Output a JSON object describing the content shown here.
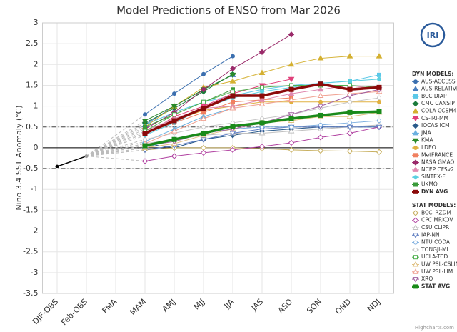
{
  "chart_data": {
    "type": "line",
    "title": "Model Predictions of ENSO from Mar 2026",
    "y_label": "Nino 3.4 SST Anomaly (°C)",
    "credit": "Highcharts.com",
    "logo": "IRI",
    "categories": [
      "DJF-OBS",
      "Feb-OBS",
      "FMA",
      "MAM",
      "AMJ",
      "MJJ",
      "JJA",
      "JAS",
      "ASO",
      "SON",
      "OND",
      "NDJ"
    ],
    "ylim": [
      -3.5,
      3
    ],
    "yticks": [
      -3.5,
      -3,
      -2.5,
      -2,
      -1.5,
      -1,
      -0.5,
      0,
      0.5,
      1,
      1.5,
      2,
      2.5,
      3
    ],
    "thresholds": [
      0.5,
      -0.5
    ],
    "grid": true,
    "observed": {
      "color": "#000000",
      "values": [
        -0.45,
        -0.2,
        null,
        null,
        null,
        null,
        null,
        null,
        null,
        null,
        null,
        null
      ]
    },
    "legend_groups": [
      "DYN MODELS:",
      "STAT MODELS:"
    ],
    "series": [
      {
        "name": "AUS-ACCESS",
        "group": 0,
        "color": "#3b6faf",
        "marker": "circle",
        "filled": true,
        "values": [
          null,
          null,
          null,
          0.8,
          1.3,
          1.77,
          2.2,
          null,
          null,
          null,
          null,
          null
        ]
      },
      {
        "name": "AUS-RELATIVE",
        "group": 0,
        "color": "#4a7fc0",
        "marker": "triangle",
        "filled": true,
        "values": [
          null,
          null,
          null,
          0.55,
          1.0,
          1.4,
          1.75,
          null,
          null,
          null,
          null,
          null
        ]
      },
      {
        "name": "BCC DIAP",
        "group": 0,
        "color": "#5bc8e8",
        "marker": "square",
        "filled": true,
        "values": [
          null,
          null,
          null,
          0.55,
          0.85,
          1.1,
          1.25,
          1.4,
          1.5,
          1.55,
          1.6,
          1.75
        ]
      },
      {
        "name": "CMC CANSIP",
        "group": 0,
        "color": "#1a7a3a",
        "marker": "diamond",
        "filled": true,
        "values": [
          null,
          null,
          null,
          0.6,
          0.95,
          1.35,
          1.77,
          null,
          null,
          null,
          null,
          null
        ]
      },
      {
        "name": "COLA CCSM4",
        "group": 0,
        "color": "#d4b030",
        "marker": "triangle",
        "filled": true,
        "values": [
          null,
          null,
          null,
          0.5,
          1.0,
          1.45,
          1.6,
          1.8,
          2.0,
          2.15,
          2.2,
          2.2
        ]
      },
      {
        "name": "CS-IRI-MM",
        "group": 0,
        "color": "#e0407a",
        "marker": "triangle-down",
        "filled": true,
        "values": [
          null,
          null,
          null,
          0.3,
          0.75,
          1.0,
          1.3,
          1.5,
          1.65,
          null,
          null,
          null
        ]
      },
      {
        "name": "IOCAS ICM",
        "group": 0,
        "color": "#2a5a8a",
        "marker": "diamond",
        "filled": true,
        "values": [
          null,
          null,
          null,
          0.1,
          0.0,
          0.2,
          0.3,
          0.4,
          0.45,
          0.5,
          0.5,
          0.5
        ]
      },
      {
        "name": "JMA",
        "group": 0,
        "color": "#6ab0e0",
        "marker": "triangle",
        "filled": true,
        "values": [
          null,
          null,
          null,
          0.15,
          0.45,
          0.75,
          0.95,
          null,
          null,
          null,
          null,
          null
        ]
      },
      {
        "name": "KMA",
        "group": 0,
        "color": "#2a8a2a",
        "marker": "triangle-down",
        "filled": true,
        "values": [
          null,
          null,
          null,
          0.65,
          1.0,
          1.4,
          1.75,
          null,
          null,
          null,
          null,
          null
        ]
      },
      {
        "name": "LDEO",
        "group": 0,
        "color": "#e0b040",
        "marker": "circle",
        "filled": true,
        "values": [
          null,
          null,
          null,
          0.35,
          0.65,
          0.9,
          1.0,
          1.1,
          1.1,
          1.1,
          1.1,
          1.1
        ]
      },
      {
        "name": "MetFRANCE",
        "group": 0,
        "color": "#f08060",
        "marker": "square",
        "filled": true,
        "values": [
          null,
          null,
          null,
          0.35,
          0.6,
          0.85,
          1.1,
          1.15,
          1.2,
          null,
          null,
          null
        ]
      },
      {
        "name": "NASA GMAO",
        "group": 0,
        "color": "#9a2a6a",
        "marker": "diamond",
        "filled": true,
        "values": [
          null,
          null,
          null,
          0.45,
          0.85,
          1.4,
          1.9,
          2.3,
          2.72,
          null,
          null,
          null
        ]
      },
      {
        "name": "NCEP CFSv2",
        "group": 0,
        "color": "#e08ab0",
        "marker": "triangle",
        "filled": true,
        "values": [
          null,
          null,
          null,
          0.4,
          0.7,
          0.95,
          1.0,
          1.15,
          1.3,
          1.4,
          1.5,
          1.4
        ]
      },
      {
        "name": "SINTEX-F",
        "group": 0,
        "color": "#5ad0e0",
        "marker": "circle",
        "filled": true,
        "values": [
          null,
          null,
          null,
          0.3,
          0.6,
          0.95,
          1.2,
          1.35,
          1.45,
          1.55,
          1.6,
          1.65
        ]
      },
      {
        "name": "UKMO",
        "group": 0,
        "color": "#3a9a3a",
        "marker": "square",
        "filled": true,
        "values": [
          null,
          null,
          null,
          0.5,
          0.8,
          1.1,
          1.4,
          null,
          null,
          null,
          null,
          null
        ]
      },
      {
        "name": "DYN AVG",
        "group": 0,
        "color": "#8b0a0a",
        "marker": "square",
        "filled": true,
        "width": 3.5,
        "values": [
          null,
          null,
          null,
          0.35,
          0.65,
          0.95,
          1.25,
          1.25,
          1.4,
          1.53,
          1.4,
          1.45
        ]
      },
      {
        "name": "BCC_RZDM",
        "group": 1,
        "color": "#c8b060",
        "marker": "diamond",
        "filled": false,
        "values": [
          null,
          null,
          null,
          -0.05,
          0.0,
          0.0,
          0.0,
          -0.02,
          -0.05,
          -0.07,
          -0.08,
          -0.1
        ]
      },
      {
        "name": "CPC MRKOV",
        "group": 1,
        "color": "#b040a0",
        "marker": "diamond",
        "filled": false,
        "values": [
          null,
          null,
          null,
          -0.32,
          -0.2,
          -0.12,
          -0.05,
          0.03,
          0.12,
          0.25,
          0.35,
          0.5
        ]
      },
      {
        "name": "CSU CLIPR",
        "group": 1,
        "color": "#c0c0c0",
        "marker": "triangle",
        "filled": false,
        "values": [
          null,
          null,
          null,
          0.1,
          0.2,
          0.3,
          0.35,
          0.35,
          0.4,
          0.45,
          0.5,
          0.55
        ]
      },
      {
        "name": "IAP-NN",
        "group": 1,
        "color": "#5a7ac0",
        "marker": "triangle-down",
        "filled": false,
        "values": [
          null,
          null,
          null,
          -0.05,
          0.05,
          0.2,
          0.35,
          0.45,
          0.5,
          0.5,
          0.5,
          0.5
        ]
      },
      {
        "name": "NTU CODA",
        "group": 1,
        "color": "#80b0e0",
        "marker": "circle",
        "filled": false,
        "values": [
          null,
          null,
          null,
          0.0,
          0.2,
          0.35,
          0.45,
          0.5,
          0.5,
          0.55,
          0.6,
          0.65
        ]
      },
      {
        "name": "TONGJI-ML",
        "group": 1,
        "color": "#c8c8c8",
        "marker": "circle",
        "filled": false,
        "values": [
          null,
          null,
          null,
          0.2,
          0.35,
          0.5,
          0.6,
          0.7,
          0.8,
          0.95,
          1.1,
          1.2
        ]
      },
      {
        "name": "UCLA-TCD",
        "group": 1,
        "color": "#50b050",
        "marker": "square",
        "filled": false,
        "values": [
          null,
          null,
          null,
          0.4,
          0.8,
          1.1,
          1.35,
          1.45,
          1.5,
          1.5,
          1.5,
          1.45
        ]
      },
      {
        "name": "UW PSL-CSLIM",
        "group": 1,
        "color": "#e0c080",
        "marker": "triangle",
        "filled": false,
        "values": [
          null,
          null,
          null,
          0.0,
          0.1,
          0.3,
          0.45,
          0.6,
          0.65,
          0.75,
          0.75,
          0.85
        ]
      },
      {
        "name": "UW PSL-LIM",
        "group": 1,
        "color": "#f0a090",
        "marker": "triangle",
        "filled": false,
        "values": [
          null,
          null,
          null,
          0.1,
          0.4,
          0.7,
          0.95,
          1.05,
          1.15,
          1.25,
          1.3,
          1.35
        ]
      },
      {
        "name": "XRO",
        "group": 1,
        "color": "#a060a0",
        "marker": "triangle-down",
        "filled": false,
        "values": [
          null,
          null,
          null,
          0.05,
          0.15,
          0.35,
          0.45,
          0.6,
          0.8,
          1.0,
          1.25,
          1.4
        ]
      },
      {
        "name": "STAT AVG",
        "group": 1,
        "color": "#1a8a1a",
        "marker": "square",
        "filled": true,
        "width": 3.5,
        "values": [
          null,
          null,
          null,
          0.05,
          0.2,
          0.35,
          0.52,
          0.6,
          0.7,
          0.78,
          0.85,
          0.87
        ]
      }
    ]
  }
}
